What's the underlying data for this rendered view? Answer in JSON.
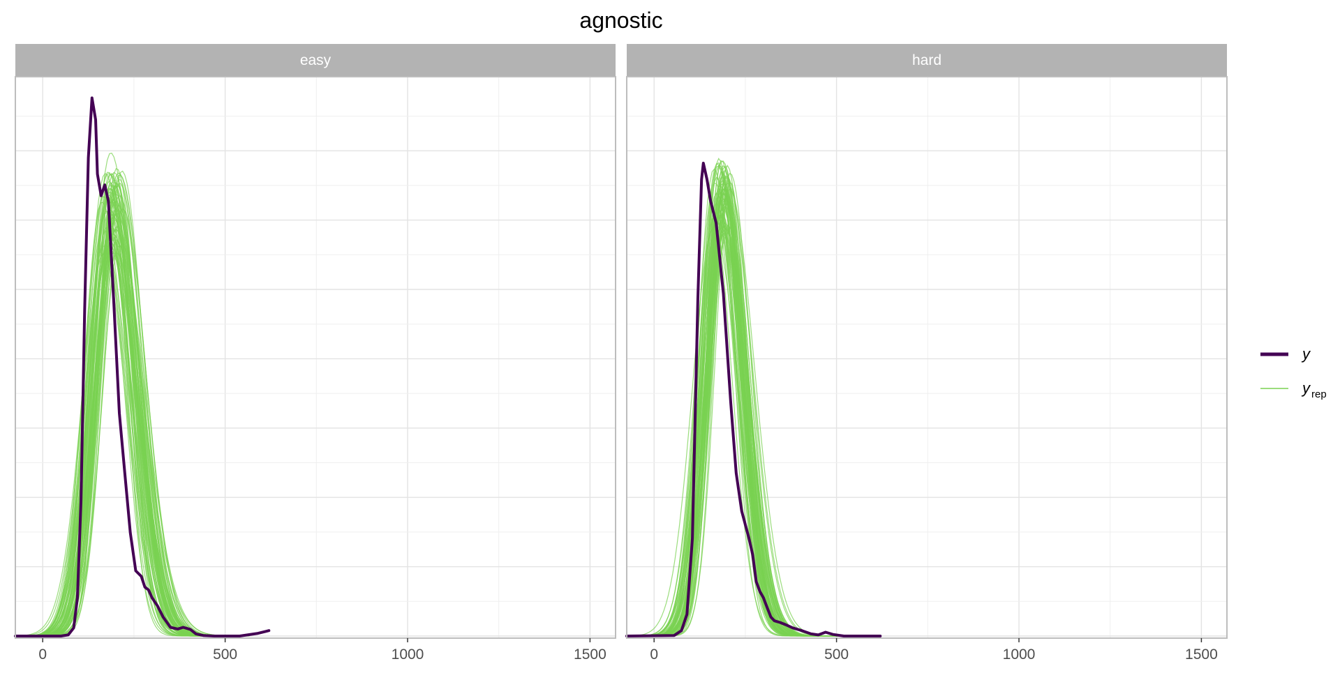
{
  "chart_data": {
    "type": "line",
    "title": "agnostic",
    "panels": [
      {
        "name": "easy"
      },
      {
        "name": "hard"
      }
    ],
    "xlim": [
      -75,
      1570
    ],
    "x_ticks": [
      0,
      500,
      1000,
      1500
    ],
    "x_tick_labels": [
      "0",
      "500",
      "1000",
      "1500"
    ],
    "grid": true,
    "legend_position": "right",
    "legend": [
      {
        "key": "y",
        "label": "y",
        "color": "#440154"
      },
      {
        "key": "yrep",
        "label": "y",
        "subscript": "rep",
        "color": "#7AD151"
      }
    ],
    "series": [
      {
        "name": "y",
        "panel": "easy",
        "color": "#440154",
        "x": [
          -75,
          50,
          70,
          85,
          95,
          105,
          115,
          125,
          135,
          145,
          150,
          160,
          170,
          180,
          195,
          210,
          225,
          240,
          255,
          270,
          280,
          290,
          300,
          315,
          330,
          350,
          370,
          385,
          405,
          420,
          440,
          470,
          500,
          540,
          590,
          620
        ],
        "y": [
          0,
          0,
          0.002,
          0.015,
          0.07,
          0.25,
          0.6,
          0.88,
          0.99,
          0.95,
          0.85,
          0.81,
          0.83,
          0.8,
          0.61,
          0.41,
          0.3,
          0.19,
          0.12,
          0.11,
          0.09,
          0.085,
          0.07,
          0.055,
          0.035,
          0.016,
          0.013,
          0.016,
          0.012,
          0.004,
          0.001,
          0,
          0,
          0,
          0.005,
          0.01
        ]
      },
      {
        "name": "y",
        "panel": "hard",
        "color": "#440154",
        "x": [
          -75,
          55,
          75,
          90,
          105,
          120,
          130,
          135,
          145,
          155,
          170,
          190,
          210,
          225,
          240,
          260,
          270,
          280,
          290,
          300,
          310,
          320,
          330,
          345,
          360,
          380,
          405,
          430,
          450,
          470,
          490,
          520,
          620
        ],
        "y": [
          0,
          0.001,
          0.01,
          0.04,
          0.18,
          0.62,
          0.84,
          0.87,
          0.84,
          0.8,
          0.76,
          0.63,
          0.43,
          0.3,
          0.23,
          0.18,
          0.15,
          0.1,
          0.082,
          0.07,
          0.052,
          0.035,
          0.028,
          0.025,
          0.021,
          0.015,
          0.01,
          0.004,
          0.002,
          0.007,
          0.003,
          0,
          0
        ]
      }
    ],
    "yrep_fan": {
      "panel_easy": {
        "center": 190,
        "sd": 55,
        "peak": 0.85,
        "center_jitter": 14,
        "sd_jitter": 6,
        "peak_range": [
          0.7,
          0.89
        ],
        "x_range": [
          -75,
          620
        ]
      },
      "panel_hard": {
        "center": 188,
        "sd": 50,
        "peak": 0.85,
        "center_jitter": 12,
        "sd_jitter": 5,
        "peak_range": [
          0.74,
          0.88
        ],
        "x_range": [
          -75,
          620
        ]
      },
      "draws": 70
    }
  }
}
